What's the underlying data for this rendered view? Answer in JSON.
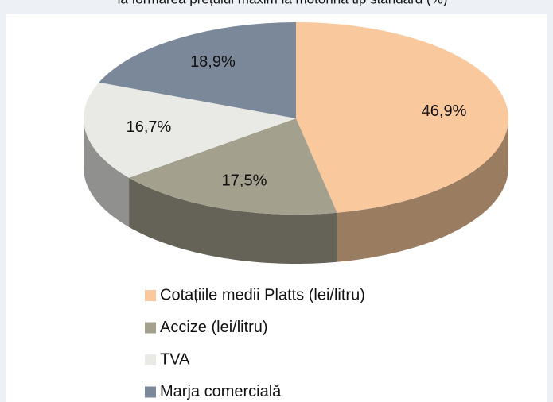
{
  "chart_data": {
    "type": "pie",
    "title": "la formarea prețului maxim la motorina tip standard (%)",
    "categories": [
      "Cotațiile medii Platts (lei/litru)",
      "Accize (lei/litru)",
      "TVA",
      "Marja comercială"
    ],
    "values": [
      46.9,
      17.5,
      16.7,
      18.9
    ],
    "value_labels": [
      "46,9%",
      "17,5%",
      "16,7%",
      "18,9%"
    ],
    "colors": [
      "#f9c89c",
      "#a3a08d",
      "#e9e9e5",
      "#7b889a"
    ],
    "legend": "bottom"
  }
}
